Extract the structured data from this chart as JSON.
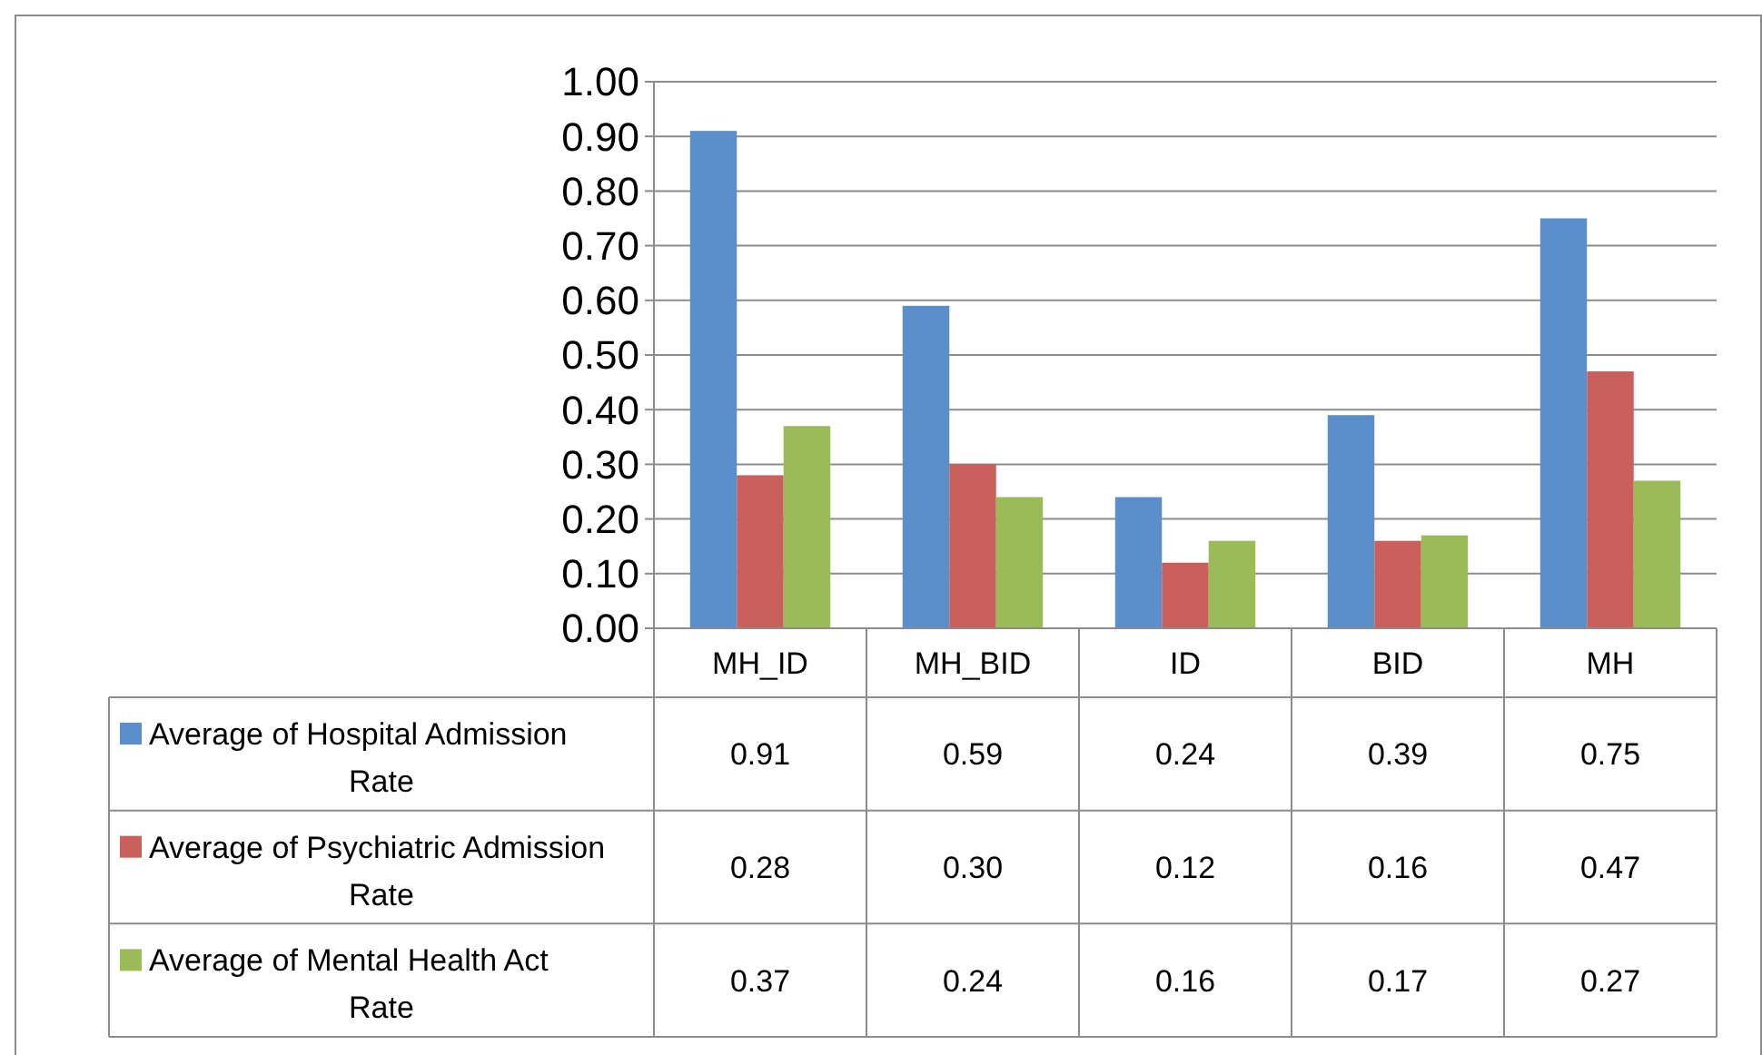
{
  "chart_data": {
    "type": "bar",
    "categories": [
      "MH_ID",
      "MH_BID",
      "ID",
      "BID",
      "MH"
    ],
    "series": [
      {
        "name": "Average of Hospital Admission Rate",
        "color": "#5b8fcb",
        "values": [
          0.91,
          0.59,
          0.24,
          0.39,
          0.75
        ],
        "value_labels": [
          "0.91",
          "0.59",
          "0.24",
          "0.39",
          "0.75"
        ]
      },
      {
        "name": "Average of Psychiatric Admission Rate",
        "color": "#c9605c",
        "values": [
          0.28,
          0.3,
          0.12,
          0.16,
          0.47
        ],
        "value_labels": [
          "0.28",
          "0.30",
          "0.12",
          "0.16",
          "0.47"
        ]
      },
      {
        "name": "Average of Mental Health Act Rate",
        "color": "#9bbb59",
        "values": [
          0.37,
          0.24,
          0.16,
          0.17,
          0.27
        ],
        "value_labels": [
          "0.37",
          "0.24",
          "0.16",
          "0.17",
          "0.27"
        ]
      }
    ],
    "ylim": [
      0,
      1
    ],
    "yticks": [
      {
        "value": 0,
        "label": "0.00"
      },
      {
        "value": 0.1,
        "label": "0.10"
      },
      {
        "value": 0.2,
        "label": "0.20"
      },
      {
        "value": 0.3,
        "label": "0.30"
      },
      {
        "value": 0.4,
        "label": "0.40"
      },
      {
        "value": 0.5,
        "label": "0.50"
      },
      {
        "value": 0.6,
        "label": "0.60"
      },
      {
        "value": 0.7,
        "label": "0.70"
      },
      {
        "value": 0.8,
        "label": "0.80"
      },
      {
        "value": 0.9,
        "label": "0.90"
      },
      {
        "value": 1,
        "label": "1.00"
      }
    ],
    "grid": "y",
    "legend": "bottom"
  }
}
